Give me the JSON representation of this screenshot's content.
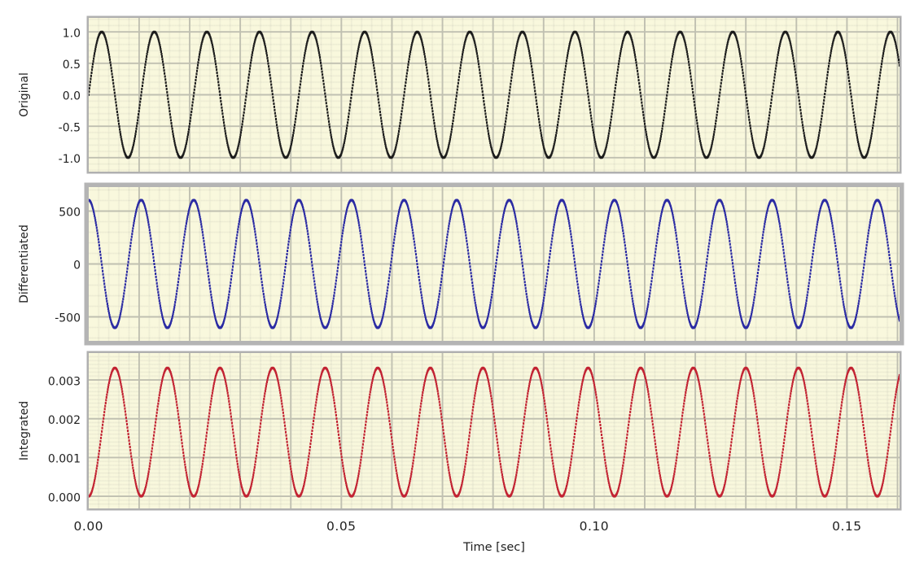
{
  "figure": {
    "title": "",
    "x_axis": {
      "label": "Time [sec]",
      "range": [
        0,
        0.1604
      ],
      "ticks": [
        {
          "t": 0.0,
          "label": "0.00"
        },
        {
          "t": 0.05,
          "label": "0.05"
        },
        {
          "t": 0.1,
          "label": "0.10"
        },
        {
          "t": 0.15,
          "label": "0.15"
        }
      ],
      "grid_major_step": 0.01,
      "grid_minor_step": 0.002
    },
    "signal": {
      "frequency_hz": 96.15,
      "base_amplitude": 1,
      "description": "sine wave, its time derivative and its time integral"
    },
    "chart_data": {
      "type": "line",
      "x": {
        "label": "Time [sec]",
        "range": [
          0,
          0.1604
        ],
        "tick_labels": [
          "0.00",
          "0.05",
          "0.10",
          "0.15"
        ]
      },
      "plots": [
        {
          "id": "original",
          "ylabel": "Original",
          "formula": "sin(2*pi*f*t)",
          "func": "sin",
          "scale": 1,
          "offset": 0,
          "color": "#1a1a1a",
          "selected": false,
          "y_range": [
            -1.222,
            1.222
          ],
          "y_ticks": [
            {
              "v": 1.0,
              "label": "1.0"
            },
            {
              "v": 0.5,
              "label": "0.5"
            },
            {
              "v": 0.0,
              "label": "0.0"
            },
            {
              "v": -0.5,
              "label": "-0.5"
            },
            {
              "v": -1.0,
              "label": "-1.0"
            }
          ],
          "y_major_step": 0.5,
          "y_minor_step": 0.1
        },
        {
          "id": "differentiated",
          "ylabel": "Differentiated",
          "formula": "2*pi*f*cos(2*pi*f*t)",
          "func": "cos",
          "scale": 604.1,
          "offset": 0,
          "color": "#2929a3",
          "selected": true,
          "y_range": [
            -727,
            727
          ],
          "y_ticks": [
            {
              "v": 500,
              "label": "500"
            },
            {
              "v": 0,
              "label": "0"
            },
            {
              "v": -500,
              "label": "-500"
            }
          ],
          "y_major_step": 500,
          "y_minor_step": 100
        },
        {
          "id": "integrated",
          "ylabel": "Integrated",
          "formula": "(1-cos(2*pi*f*t))/(2*pi*f)",
          "func": "cos",
          "scale": -0.0016554,
          "offset": 0.0016554,
          "color": "#c22431",
          "selected": false,
          "y_range": [
            -0.000313,
            0.003694
          ],
          "y_ticks": [
            {
              "v": 0.003,
              "label": "0.003"
            },
            {
              "v": 0.002,
              "label": "0.002"
            },
            {
              "v": 0.001,
              "label": "0.001"
            },
            {
              "v": 0.0,
              "label": "0.000"
            }
          ],
          "y_major_step": 0.001,
          "y_minor_step": 0.0001
        }
      ]
    },
    "style": {
      "page_bg": "#ffffff",
      "plot_bg": "#f9f8dd",
      "grid_minor": "#d2d2c0",
      "grid_major": "#c0c0b1",
      "panel_border": "#b0b0b0",
      "panel_border_selected": "#b4b4b4",
      "text_color": "#1f1f1f"
    }
  }
}
